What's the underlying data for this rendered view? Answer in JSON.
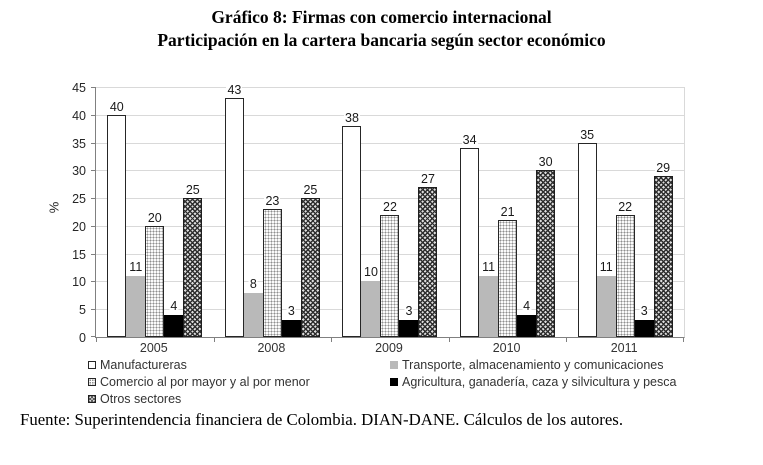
{
  "title": {
    "line1": "Gráfico 8: Firmas con comercio internacional",
    "line2": "Participación en la cartera bancaria según sector económico"
  },
  "footer": "Fuente: Superintendencia financiera de Colombia. DIAN-DANE. Cálculos de los autores.",
  "chart_data": {
    "type": "bar",
    "title": "Gráfico 8: Firmas con comercio internacional — Participación en la cartera bancaria según sector económico",
    "categories": [
      "2005",
      "2008",
      "2009",
      "2010",
      "2011"
    ],
    "series": [
      {
        "name": "Manufactureras",
        "pattern": "solid-white",
        "fill": "#ffffff",
        "values": [
          40,
          43,
          38,
          34,
          35
        ]
      },
      {
        "name": "Transporte, almacenamiento y comunicaciones",
        "pattern": "solid-gray",
        "fill": "#b9b9b9",
        "values": [
          11,
          8,
          10,
          11,
          11
        ]
      },
      {
        "name": "Comercio al por mayor y al por menor",
        "pattern": "dots-light",
        "fill": "#f0f0f0",
        "values": [
          20,
          23,
          22,
          21,
          22
        ]
      },
      {
        "name": "Agricultura, ganadería, caza y silvicultura y pesca",
        "pattern": "solid-black",
        "fill": "#000000",
        "values": [
          4,
          3,
          3,
          4,
          3
        ]
      },
      {
        "name": "Otros sectores",
        "pattern": "hatch-dark",
        "fill": "#555555",
        "values": [
          25,
          25,
          27,
          30,
          29
        ]
      }
    ],
    "xlabel": "",
    "ylabel": "%",
    "ylim": [
      0,
      45
    ],
    "ytick_step": 5,
    "grid": true,
    "data_labels": true,
    "legend_position": "bottom"
  },
  "colors": {
    "grid": "#d9d9d9",
    "axis": "#808080",
    "text": "#262626",
    "background": "#ffffff"
  }
}
